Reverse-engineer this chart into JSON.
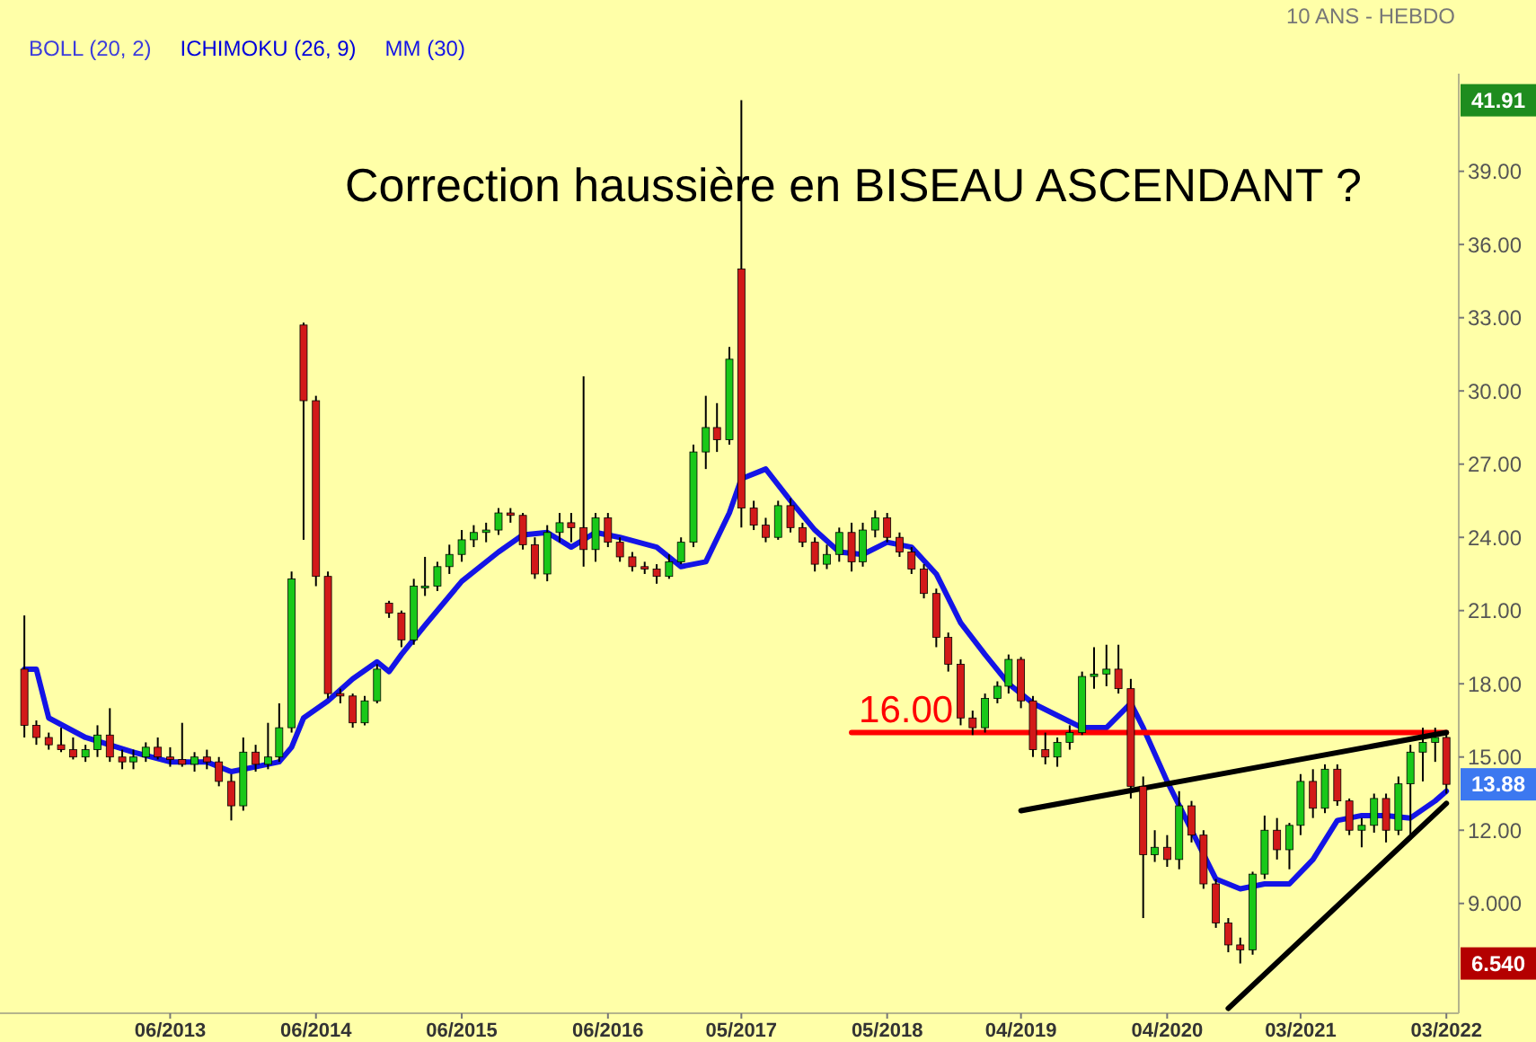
{
  "chart_data": {
    "type": "candlestick",
    "title": "Correction haussière en BISEAU ASCENDANT ?",
    "subtitle": "10 ANS - HEBDO",
    "legend": "top left",
    "annotations": [
      "BOLL (20, 2)",
      "ICHIMOKU (26, 9)",
      {
        "text": "16.00",
        "x": "2018-02",
        "y": 16
      },
      {
        "text": "41.91",
        "y": 41.91
      },
      {
        "text": "13.88",
        "y": 13.88
      },
      {
        "text": "6.540",
        "y": 6.54
      }
    ],
    "xlim": [
      "2012-04",
      "2022-04"
    ],
    "xticks": [
      {
        "value": "2013-06",
        "label": "06/2013"
      },
      {
        "value": "2014-06",
        "label": "06/2014"
      },
      {
        "value": "2015-06",
        "label": "06/2015"
      },
      {
        "value": "2016-06",
        "label": "06/2016"
      },
      {
        "value": "2017-05",
        "label": "05/2017"
      },
      {
        "value": "2018-05",
        "label": "05/2018"
      },
      {
        "value": "2019-04",
        "label": "04/2019"
      },
      {
        "value": "2020-04",
        "label": "04/2020"
      },
      {
        "value": "2021-03",
        "label": "03/2021"
      },
      {
        "value": "2022-03",
        "label": "03/2022"
      }
    ],
    "ylim": [
      4.5,
      43
    ],
    "yticks": [
      {
        "value": 9,
        "label": "9.000"
      },
      {
        "value": 12,
        "label": "12.00"
      },
      {
        "value": 15,
        "label": "15.00"
      },
      {
        "value": 18,
        "label": "18.00"
      },
      {
        "value": 21,
        "label": "21.00"
      },
      {
        "value": 24,
        "label": "24.00"
      },
      {
        "value": 27,
        "label": "27.00"
      },
      {
        "value": 30,
        "label": "30.00"
      },
      {
        "value": 33,
        "label": "33.00"
      },
      {
        "value": 36,
        "label": "36.00"
      },
      {
        "value": 39,
        "label": "39.00"
      }
    ],
    "series": [
      {
        "type": "candlestick",
        "x": [
          "2012-06",
          "2012-07",
          "2012-08",
          "2012-09",
          "2012-10",
          "2012-11",
          "2012-12",
          "2013-01",
          "2013-02",
          "2013-03",
          "2013-04",
          "2013-05",
          "2013-06",
          "2013-07",
          "2013-08",
          "2013-09",
          "2013-10",
          "2013-11",
          "2013-12",
          "2014-01",
          "2014-02",
          "2014-03",
          "2014-04",
          "2014-05",
          "2014-06",
          "2014-07",
          "2014-08",
          "2014-09",
          "2014-10",
          "2014-11",
          "2014-12",
          "2015-01",
          "2015-02",
          "2015-03",
          "2015-04",
          "2015-05",
          "2015-06",
          "2015-07",
          "2015-08",
          "2015-09",
          "2015-10",
          "2015-11",
          "2015-12",
          "2016-01",
          "2016-02",
          "2016-03",
          "2016-04",
          "2016-05",
          "2016-06",
          "2016-07",
          "2016-08",
          "2016-09",
          "2016-10",
          "2016-11",
          "2016-12",
          "2017-01",
          "2017-02",
          "2017-03",
          "2017-04",
          "2017-05",
          "2017-06",
          "2017-07",
          "2017-08",
          "2017-09",
          "2017-10",
          "2017-11",
          "2017-12",
          "2018-01",
          "2018-02",
          "2018-03",
          "2018-04",
          "2018-05",
          "2018-06",
          "2018-07",
          "2018-08",
          "2018-09",
          "2018-10",
          "2018-11",
          "2018-12",
          "2019-01",
          "2019-02",
          "2019-03",
          "2019-04",
          "2019-05",
          "2019-06",
          "2019-07",
          "2019-08",
          "2019-09",
          "2019-10",
          "2019-11",
          "2019-12",
          "2020-01",
          "2020-02",
          "2020-03",
          "2020-04",
          "2020-05",
          "2020-06",
          "2020-07",
          "2020-08",
          "2020-09",
          "2020-10",
          "2020-11",
          "2020-12",
          "2021-01",
          "2021-02",
          "2021-03",
          "2021-04",
          "2021-05",
          "2021-06",
          "2021-07",
          "2021-08",
          "2021-09",
          "2021-10",
          "2021-11",
          "2021-12",
          "2022-01",
          "2022-02",
          "2022-03"
        ],
        "ohlc": [
          [
            18.6,
            20.8,
            15.8,
            16.3
          ],
          [
            16.3,
            16.5,
            15.5,
            15.8
          ],
          [
            15.8,
            16.0,
            15.3,
            15.5
          ],
          [
            15.5,
            16.2,
            15.2,
            15.3
          ],
          [
            15.3,
            15.8,
            14.9,
            15.0
          ],
          [
            15.0,
            15.5,
            14.8,
            15.3
          ],
          [
            15.3,
            16.3,
            15.0,
            15.9
          ],
          [
            15.9,
            17.0,
            14.8,
            15.0
          ],
          [
            15.0,
            15.3,
            14.5,
            14.8
          ],
          [
            14.8,
            15.3,
            14.5,
            15.0
          ],
          [
            15.0,
            15.6,
            14.8,
            15.4
          ],
          [
            15.4,
            15.8,
            14.9,
            15.0
          ],
          [
            15.0,
            15.4,
            14.6,
            14.9
          ],
          [
            14.9,
            16.4,
            14.6,
            14.7
          ],
          [
            14.7,
            15.2,
            14.4,
            15.0
          ],
          [
            15.0,
            15.3,
            14.5,
            14.8
          ],
          [
            14.8,
            15.0,
            13.8,
            14.0
          ],
          [
            14.0,
            14.3,
            12.4,
            13.0
          ],
          [
            13.0,
            15.8,
            12.8,
            15.2
          ],
          [
            15.2,
            15.5,
            14.4,
            14.7
          ],
          [
            14.7,
            16.4,
            14.5,
            15.0
          ],
          [
            15.0,
            17.2,
            14.8,
            16.2
          ],
          [
            16.2,
            22.6,
            16.0,
            22.3
          ],
          [
            32.7,
            32.8,
            23.9,
            29.6
          ],
          [
            29.6,
            29.8,
            22.0,
            22.4
          ],
          [
            22.4,
            22.6,
            17.4,
            17.6
          ],
          [
            17.6,
            17.8,
            17.2,
            17.5
          ],
          [
            17.5,
            17.6,
            16.2,
            16.4
          ],
          [
            16.4,
            17.5,
            16.3,
            17.3
          ],
          [
            17.3,
            18.8,
            17.2,
            18.6
          ],
          [
            21.3,
            21.4,
            20.7,
            20.9
          ],
          [
            20.9,
            21.0,
            19.5,
            19.8
          ],
          [
            19.8,
            22.3,
            19.6,
            22.0
          ],
          [
            22.0,
            23.2,
            21.6,
            22.0
          ],
          [
            22.0,
            23.0,
            21.8,
            22.8
          ],
          [
            22.8,
            23.7,
            22.5,
            23.3
          ],
          [
            23.3,
            24.3,
            23.0,
            23.9
          ],
          [
            23.9,
            24.5,
            23.6,
            24.2
          ],
          [
            24.2,
            24.6,
            23.8,
            24.3
          ],
          [
            24.3,
            25.2,
            24.1,
            25.0
          ],
          [
            25.0,
            25.2,
            24.6,
            24.9
          ],
          [
            24.9,
            25.0,
            23.5,
            23.7
          ],
          [
            23.7,
            24.0,
            22.3,
            22.5
          ],
          [
            22.5,
            24.5,
            22.2,
            24.2
          ],
          [
            24.2,
            25.0,
            23.8,
            24.6
          ],
          [
            24.6,
            25.0,
            23.8,
            24.4
          ],
          [
            24.4,
            30.6,
            22.8,
            23.5
          ],
          [
            23.5,
            25.0,
            23.0,
            24.8
          ],
          [
            24.8,
            25.0,
            23.6,
            23.8
          ],
          [
            23.8,
            24.0,
            23.0,
            23.2
          ],
          [
            23.2,
            23.4,
            22.6,
            22.8
          ],
          [
            22.8,
            23.0,
            22.5,
            22.7
          ],
          [
            22.7,
            22.9,
            22.1,
            22.4
          ],
          [
            22.4,
            23.3,
            22.3,
            23.0
          ],
          [
            23.0,
            24.0,
            22.9,
            23.8
          ],
          [
            23.8,
            27.8,
            23.6,
            27.5
          ],
          [
            27.5,
            29.8,
            26.8,
            28.5
          ],
          [
            28.5,
            29.5,
            27.5,
            28.0
          ],
          [
            28.0,
            31.8,
            27.8,
            31.3
          ],
          [
            35.0,
            41.91,
            24.4,
            25.2
          ],
          [
            25.2,
            25.5,
            24.3,
            24.5
          ],
          [
            24.5,
            24.8,
            23.8,
            24.0
          ],
          [
            24.0,
            25.5,
            23.9,
            25.3
          ],
          [
            25.3,
            25.6,
            24.2,
            24.4
          ],
          [
            24.4,
            24.6,
            23.6,
            23.8
          ],
          [
            23.8,
            24.0,
            22.6,
            22.9
          ],
          [
            22.9,
            23.7,
            22.7,
            23.3
          ],
          [
            23.3,
            24.4,
            23.0,
            24.2
          ],
          [
            24.2,
            24.6,
            22.6,
            23.0
          ],
          [
            23.0,
            24.6,
            22.8,
            24.3
          ],
          [
            24.3,
            25.1,
            24.0,
            24.8
          ],
          [
            24.8,
            25.0,
            23.8,
            24.0
          ],
          [
            24.0,
            24.2,
            23.2,
            23.4
          ],
          [
            23.4,
            23.6,
            22.5,
            22.7
          ],
          [
            22.7,
            22.9,
            21.5,
            21.7
          ],
          [
            21.7,
            21.9,
            19.5,
            19.9
          ],
          [
            19.9,
            20.1,
            18.5,
            18.8
          ],
          [
            18.8,
            19.0,
            16.3,
            16.6
          ],
          [
            16.6,
            16.9,
            15.9,
            16.2
          ],
          [
            16.2,
            17.6,
            16.0,
            17.4
          ],
          [
            17.4,
            18.1,
            17.2,
            17.9
          ],
          [
            17.9,
            19.2,
            17.6,
            19.0
          ],
          [
            19.0,
            19.1,
            17.0,
            17.3
          ],
          [
            17.3,
            17.5,
            15.0,
            15.3
          ],
          [
            15.3,
            16.0,
            14.7,
            15.0
          ],
          [
            15.0,
            15.8,
            14.6,
            15.6
          ],
          [
            15.6,
            16.3,
            15.3,
            16.0
          ],
          [
            16.0,
            18.5,
            15.9,
            18.3
          ],
          [
            18.3,
            19.5,
            17.8,
            18.4
          ],
          [
            18.4,
            19.6,
            17.9,
            18.6
          ],
          [
            18.6,
            19.6,
            17.6,
            17.8
          ],
          [
            17.8,
            18.2,
            13.3,
            13.8
          ],
          [
            13.8,
            14.2,
            8.4,
            11.0
          ],
          [
            11.0,
            12.0,
            10.7,
            11.3
          ],
          [
            11.3,
            11.8,
            10.5,
            10.8
          ],
          [
            10.8,
            13.6,
            10.4,
            13.0
          ],
          [
            13.0,
            13.2,
            11.5,
            11.8
          ],
          [
            11.8,
            12.0,
            9.6,
            9.8
          ],
          [
            9.8,
            10.0,
            8.0,
            8.2
          ],
          [
            8.2,
            8.4,
            7.0,
            7.3
          ],
          [
            7.3,
            7.6,
            6.54,
            7.1
          ],
          [
            7.1,
            10.3,
            6.9,
            10.2
          ],
          [
            10.2,
            12.6,
            10.0,
            12.0
          ],
          [
            12.0,
            12.5,
            10.8,
            11.2
          ],
          [
            11.2,
            12.3,
            10.4,
            12.2
          ],
          [
            12.2,
            14.3,
            11.8,
            14.0
          ],
          [
            14.0,
            14.5,
            12.5,
            12.9
          ],
          [
            12.9,
            14.7,
            12.7,
            14.5
          ],
          [
            14.5,
            14.7,
            13.0,
            13.2
          ],
          [
            13.2,
            13.3,
            11.8,
            12.0
          ],
          [
            12.0,
            12.5,
            11.3,
            12.2
          ],
          [
            12.2,
            13.5,
            11.9,
            13.3
          ],
          [
            13.3,
            13.5,
            11.5,
            12.0
          ],
          [
            12.0,
            14.2,
            11.8,
            13.9
          ],
          [
            13.9,
            15.5,
            11.6,
            15.2
          ],
          [
            15.2,
            16.2,
            14.0,
            15.6
          ],
          [
            15.6,
            16.2,
            14.8,
            15.8
          ],
          [
            15.8,
            16.0,
            13.5,
            13.88
          ]
        ]
      },
      {
        "type": "line",
        "name": "MM (30)",
        "color": "#1414e6",
        "x": [
          "2012-06",
          "2012-07",
          "2012-08",
          "2012-11",
          "2013-03",
          "2013-06",
          "2013-09",
          "2013-11",
          "2014-01",
          "2014-03",
          "2014-04",
          "2014-05",
          "2014-07",
          "2014-09",
          "2014-11",
          "2014-12",
          "2015-01",
          "2015-03",
          "2015-06",
          "2015-09",
          "2015-11",
          "2016-01",
          "2016-03",
          "2016-05",
          "2016-07",
          "2016-10",
          "2016-12",
          "2017-02",
          "2017-04",
          "2017-05",
          "2017-07",
          "2017-09",
          "2017-11",
          "2018-01",
          "2018-03",
          "2018-05",
          "2018-07",
          "2018-09",
          "2018-11",
          "2019-01",
          "2019-03",
          "2019-05",
          "2019-07",
          "2019-09",
          "2019-11",
          "2020-01",
          "2020-02",
          "2020-04",
          "2020-06",
          "2020-08",
          "2020-10",
          "2020-12",
          "2021-02",
          "2021-04",
          "2021-06",
          "2021-08",
          "2021-10",
          "2021-12",
          "2022-02",
          "2022-03"
        ],
        "values": [
          18.6,
          18.6,
          16.6,
          15.8,
          15.2,
          14.8,
          14.8,
          14.4,
          14.6,
          14.8,
          15.4,
          16.6,
          17.3,
          18.2,
          18.9,
          18.5,
          19.2,
          20.4,
          22.2,
          23.4,
          24.1,
          24.2,
          23.6,
          24.2,
          24.0,
          23.6,
          22.8,
          23.0,
          25.0,
          26.4,
          26.8,
          25.5,
          24.3,
          23.4,
          23.3,
          23.8,
          23.6,
          22.5,
          20.5,
          19.2,
          18.0,
          17.2,
          16.7,
          16.2,
          16.2,
          17.2,
          16.2,
          14.0,
          12.0,
          10.0,
          9.6,
          9.8,
          9.8,
          10.8,
          12.4,
          12.6,
          12.6,
          12.5,
          13.2,
          13.6
        ]
      },
      {
        "type": "line",
        "color": "#ff0000",
        "x": [
          "2018-02",
          "2022-03"
        ],
        "values": [
          16,
          16
        ]
      },
      {
        "type": "line",
        "color": "#000000",
        "x": [
          "2019-04",
          "2022-03"
        ],
        "values": [
          12.8,
          16.0
        ]
      },
      {
        "type": "line",
        "color": "#000000",
        "x": [
          "2020-09",
          "2022-03"
        ],
        "values": [
          4.7,
          13.1
        ]
      }
    ]
  }
}
